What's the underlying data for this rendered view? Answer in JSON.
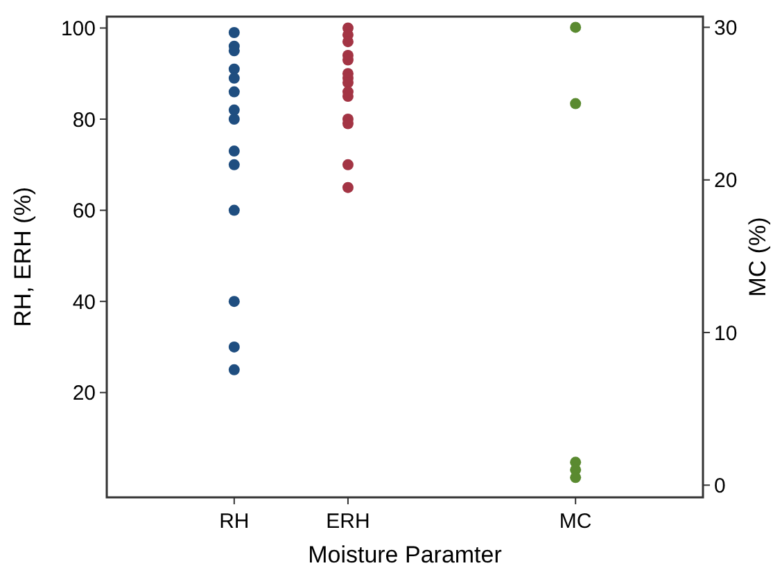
{
  "chart_data": {
    "type": "scatter",
    "xlabel": "Moisture Paramter",
    "ylabel": "RH, ERH (%)",
    "y2label": "MC (%)",
    "categories": [
      null,
      "RH",
      "ERH",
      null,
      "MC",
      null
    ],
    "ylim": [
      -3,
      102.5
    ],
    "yticks": [
      20,
      40,
      60,
      80,
      100
    ],
    "y2lim": [
      -0.8,
      30.7
    ],
    "y2ticks": [
      0,
      10,
      20,
      30
    ],
    "grid": false,
    "marker": "circle",
    "series": [
      {
        "color": "#1f4e80",
        "x": [
          "RH",
          "RH",
          "RH",
          "RH",
          "RH",
          "RH",
          "RH",
          "RH",
          "RH",
          "RH",
          "RH",
          "RH",
          "RH",
          "RH"
        ],
        "values": [
          99,
          96,
          95,
          91,
          89,
          86,
          82,
          80,
          73,
          70,
          60,
          40,
          30,
          25
        ]
      },
      {
        "color": "#a33444",
        "x": [
          "ERH",
          "ERH",
          "ERH",
          "ERH",
          "ERH",
          "ERH",
          "ERH",
          "ERH",
          "ERH",
          "ERH",
          "ERH",
          "ERH",
          "ERH",
          "ERH"
        ],
        "values": [
          100,
          98.5,
          97,
          94,
          93,
          90,
          89,
          88,
          86,
          85,
          80,
          79,
          70,
          65
        ]
      },
      {
        "color": "#5a8a30",
        "axis": "y2",
        "x": [
          "MC",
          "MC",
          "MC",
          "MC",
          "MC"
        ],
        "values": [
          30,
          25,
          1.5,
          1,
          0.5
        ]
      }
    ]
  }
}
